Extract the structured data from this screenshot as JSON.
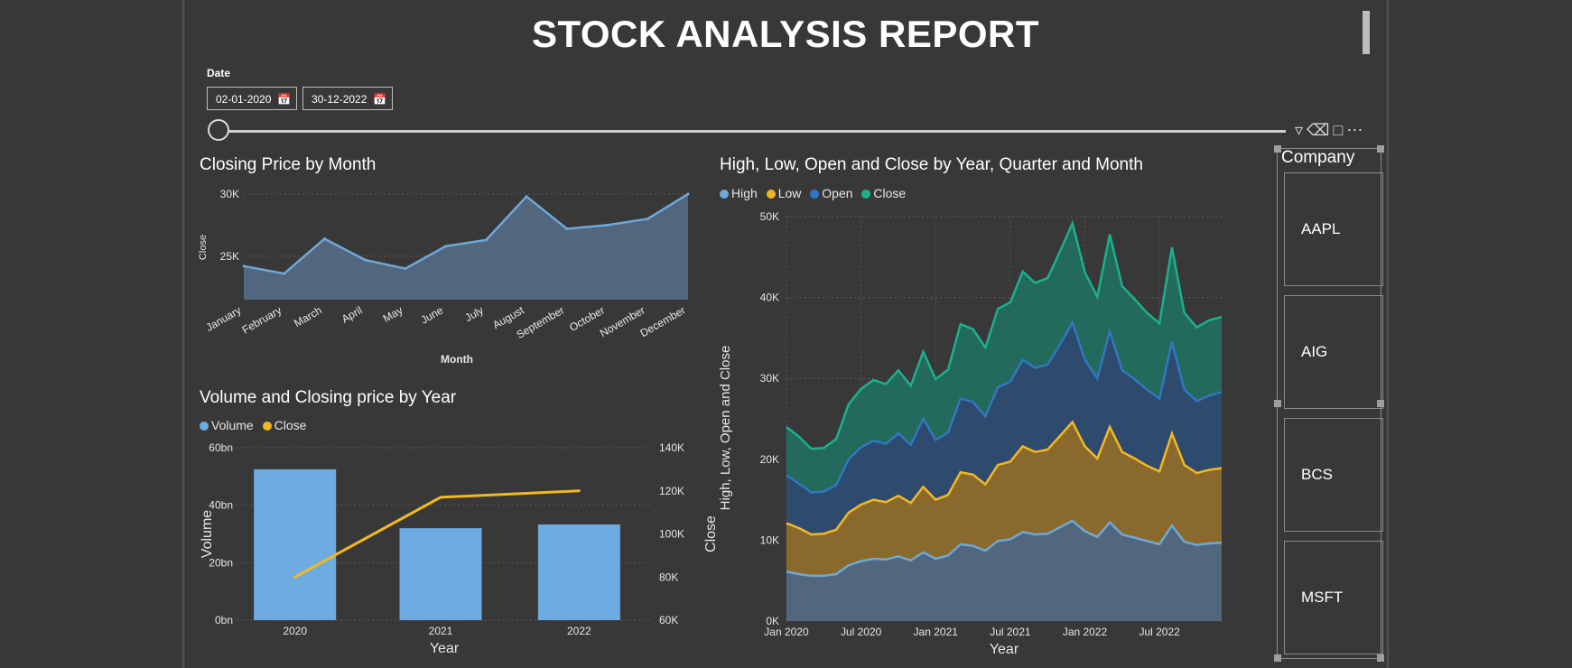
{
  "report": {
    "title": "STOCK ANALYSIS REPORT"
  },
  "date_filter": {
    "label": "Date",
    "start": "02-01-2020",
    "end": "30-12-2022"
  },
  "slicer": {
    "title": "Company",
    "items": [
      "AAPL",
      "AIG",
      "BCS",
      "MSFT"
    ]
  },
  "colors": {
    "high": "#6ea8d8",
    "low": "#f2b824",
    "open": "#2f77c3",
    "close": "#1bb18b",
    "volume_bar": "#6cace0"
  },
  "chart_data": [
    {
      "type": "area",
      "title": "Closing Price by Month",
      "xlabel": "Month",
      "ylabel": "Close",
      "categories": [
        "January",
        "February",
        "March",
        "April",
        "May",
        "June",
        "July",
        "August",
        "September",
        "October",
        "November",
        "December"
      ],
      "values": [
        24200,
        23600,
        26400,
        24700,
        24000,
        25800,
        26300,
        29800,
        27200,
        27500,
        28000,
        30000
      ],
      "ylim": [
        21500,
        30500
      ],
      "yticks": [
        25000,
        30000
      ],
      "ytick_labels": [
        "25K",
        "30K"
      ]
    },
    {
      "type": "bar",
      "title": "Volume and Closing price by Year",
      "xlabel": "Year",
      "ylabel": "Volume",
      "y2label": "Close",
      "legend": [
        "Volume",
        "Close"
      ],
      "categories": [
        "2020",
        "2021",
        "2022"
      ],
      "series": [
        {
          "name": "Volume",
          "values": [
            52.5,
            32,
            33.3
          ]
        },
        {
          "name": "Close",
          "values": [
            80000,
            117000,
            120000
          ]
        }
      ],
      "ylim": [
        0,
        60
      ],
      "y2lim": [
        60000,
        140000
      ],
      "yticks": [
        0,
        20,
        40,
        60
      ],
      "ytick_labels": [
        "0bn",
        "20bn",
        "40bn",
        "60bn"
      ],
      "y2ticks": [
        60000,
        80000,
        100000,
        120000,
        140000
      ],
      "y2tick_labels": [
        "60K",
        "80K",
        "100K",
        "120K",
        "140K"
      ]
    },
    {
      "type": "area",
      "title": "High, Low, Open and Close by Year, Quarter and Month",
      "xlabel": "Year",
      "ylabel": "High, Low, Open and Close",
      "legend": [
        "High",
        "Low",
        "Open",
        "Close"
      ],
      "x": [
        "2020-01",
        "2020-02",
        "2020-03",
        "2020-04",
        "2020-05",
        "2020-06",
        "2020-07",
        "2020-08",
        "2020-09",
        "2020-10",
        "2020-11",
        "2020-12",
        "2021-01",
        "2021-02",
        "2021-03",
        "2021-04",
        "2021-05",
        "2021-06",
        "2021-07",
        "2021-08",
        "2021-09",
        "2021-10",
        "2021-11",
        "2021-12",
        "2022-01",
        "2022-02",
        "2022-03",
        "2022-04",
        "2022-05",
        "2022-06",
        "2022-07",
        "2022-08",
        "2022-09",
        "2022-10",
        "2022-11",
        "2022-12"
      ],
      "series": [
        {
          "name": "High",
          "values": [
            6100,
            5800,
            5600,
            5600,
            5800,
            6900,
            7400,
            7700,
            7600,
            8000,
            7500,
            8500,
            7700,
            8100,
            9500,
            9300,
            8700,
            9900,
            10100,
            11000,
            10700,
            10800,
            11600,
            12400,
            11100,
            10400,
            12200,
            10700,
            10300,
            9900,
            9500,
            11800,
            9800,
            9400,
            9600,
            9700
          ]
        },
        {
          "name": "Low",
          "values": [
            12100,
            11500,
            10700,
            10800,
            11300,
            13400,
            14400,
            15000,
            14700,
            15500,
            14600,
            16600,
            15000,
            15600,
            18400,
            18100,
            16900,
            19300,
            19700,
            21600,
            20900,
            21200,
            22900,
            24600,
            21600,
            20100,
            24000,
            20900,
            20100,
            19200,
            18500,
            23200,
            19300,
            18300,
            18700,
            18900
          ]
        },
        {
          "name": "Open",
          "values": [
            18000,
            17000,
            15900,
            16000,
            16800,
            20000,
            21500,
            22300,
            21900,
            23200,
            21800,
            25000,
            22400,
            23300,
            27500,
            27100,
            25300,
            28900,
            29600,
            32300,
            31300,
            31700,
            34200,
            36900,
            32300,
            30000,
            35800,
            31000,
            29900,
            28600,
            27500,
            34500,
            28600,
            27200,
            27900,
            28300
          ]
        },
        {
          "name": "Close",
          "values": [
            24000,
            22800,
            21300,
            21400,
            22500,
            26800,
            28700,
            29800,
            29300,
            31000,
            29100,
            33300,
            29900,
            31100,
            36700,
            36100,
            33800,
            38600,
            39400,
            43200,
            41800,
            42400,
            45700,
            49200,
            43100,
            40100,
            47800,
            41400,
            39800,
            38100,
            36800,
            46200,
            38100,
            36300,
            37200,
            37600
          ]
        }
      ],
      "stacked": true,
      "ylim": [
        0,
        50000
      ],
      "yticks": [
        0,
        10000,
        20000,
        30000,
        40000,
        50000
      ],
      "ytick_labels": [
        "0K",
        "10K",
        "20K",
        "30K",
        "40K",
        "50K"
      ],
      "xtick_labels": [
        "Jan 2020",
        "Jul 2020",
        "Jan 2021",
        "Jul 2021",
        "Jan 2022",
        "Jul 2022"
      ],
      "xtick_index": [
        0,
        6,
        12,
        18,
        24,
        30
      ]
    }
  ]
}
